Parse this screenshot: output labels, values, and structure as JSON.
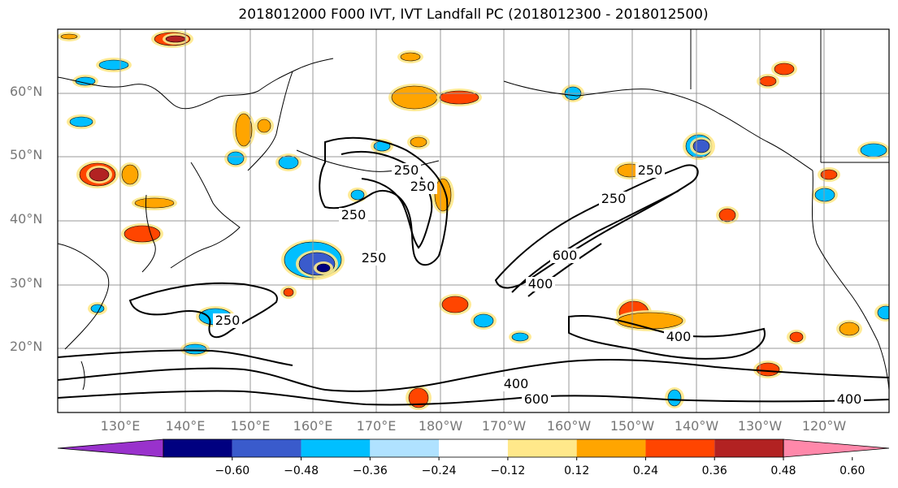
{
  "title": "2018012000 F000 IVT, IVT Landfall PC (2018012300 - 2018012500)",
  "lat_labels": [
    "60°N",
    "50°N",
    "40°N",
    "30°N",
    "20°N"
  ],
  "lon_labels": [
    "130°E",
    "140°E",
    "150°E",
    "160°E",
    "170°E",
    "180°W",
    "170°W",
    "160°W",
    "150°W",
    "140°W",
    "130°W",
    "120°W"
  ],
  "colorbar": {
    "ticks": [
      "−0.60",
      "−0.48",
      "−0.36",
      "−0.24",
      "−0.12",
      "0.12",
      "0.24",
      "0.36",
      "0.48",
      "0.60"
    ],
    "colors": [
      "#9932cc",
      "#000080",
      "#3a5bcc",
      "#00bfff",
      "#b0e2ff",
      "#ffffff",
      "#ffe88a",
      "#ffa500",
      "#ff4500",
      "#b22222",
      "#ff88aa"
    ]
  },
  "contour_labels": [
    "250",
    "250",
    "250",
    "250",
    "250",
    "250",
    "250",
    "600",
    "400",
    "400",
    "400",
    "600",
    "400"
  ],
  "colors": {
    "frame": "#000000",
    "grid": "#999999",
    "land_line": "#000000",
    "contour": "#000000"
  }
}
